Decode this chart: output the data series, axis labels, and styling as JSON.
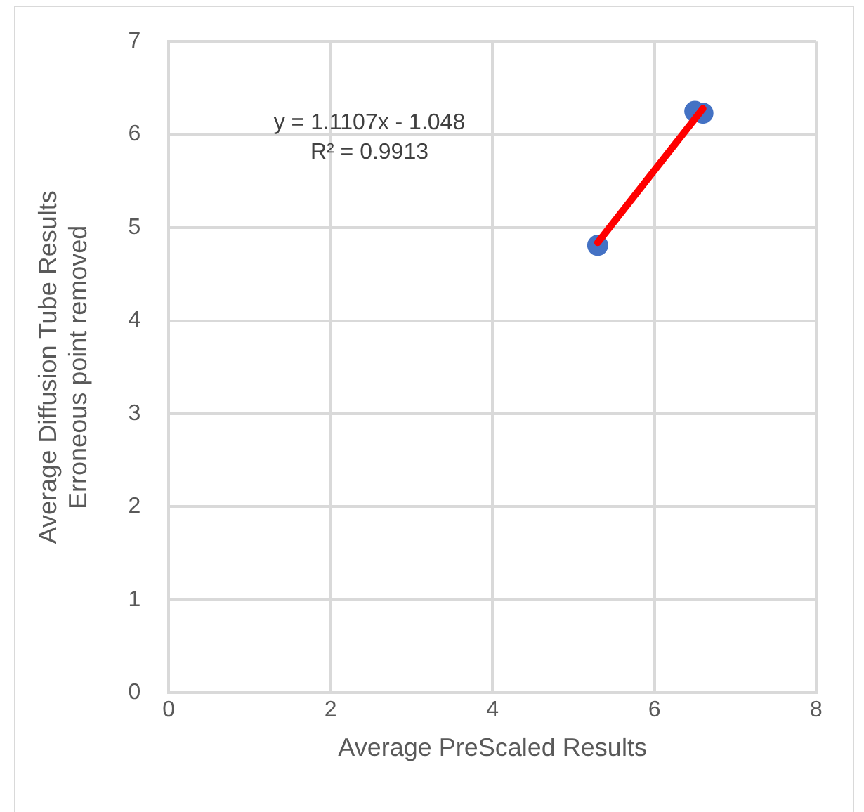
{
  "chart_data": {
    "type": "scatter",
    "xlabel": "Average PreScaled Results",
    "ylabel": "Average Diffusion Tube Results\nErroneous point removed",
    "xlim": [
      0,
      8
    ],
    "xticks": [
      0,
      2,
      4,
      6,
      8
    ],
    "ylim": [
      0,
      7
    ],
    "yticks": [
      0,
      1,
      2,
      3,
      4,
      5,
      6,
      7
    ],
    "grid": true,
    "legend": false,
    "marker": "circle",
    "annotations": [
      "y = 1.1107x - 1.048",
      "R² = 0.9913"
    ],
    "series": [
      {
        "type": "scatter",
        "color": "#4472c4",
        "x": [
          5.3,
          6.5,
          6.6
        ],
        "values": [
          4.81,
          6.25,
          6.23
        ]
      },
      {
        "type": "line",
        "color": "#ff0000",
        "x": [
          5.3,
          6.6
        ],
        "values": [
          4.84,
          6.28
        ],
        "marker": "none",
        "line_style": "solid"
      }
    ]
  }
}
